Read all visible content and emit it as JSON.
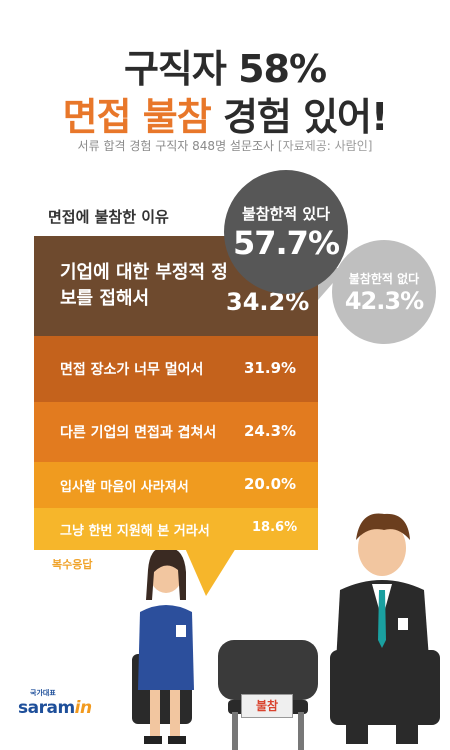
{
  "header": {
    "title_line1": "구직자 58%",
    "title_line2_highlight": "면접 불참",
    "title_line2_rest": " 경험 있어!",
    "subtitle": "서류 합격 경험 구직자 848명 설문조사",
    "source": "[자료제공: 사람인]"
  },
  "stats": {
    "yes_label": "불참한적 있다",
    "yes_value": "57.7%",
    "no_label": "불참한적 없다",
    "no_value": "42.3%"
  },
  "chart_data": {
    "type": "bar",
    "title": "면접에 불참한 이유",
    "categories": [
      "기업에 대한 부정적 정보를 접해서",
      "면접 장소가 너무 멀어서",
      "다른 기업의 면접과 겹쳐서",
      "입사할 마음이 사라져서",
      "그냥 한번 지원해 본 거라서"
    ],
    "values": [
      34.2,
      31.9,
      24.3,
      20.0,
      18.6
    ],
    "value_labels": [
      "34.2%",
      "31.9%",
      "24.3%",
      "20.0%",
      "18.6%"
    ],
    "note": "복수응답",
    "colors": [
      "#6e4a2e",
      "#c4621c",
      "#e27b1f",
      "#f09b1f",
      "#f6b62b"
    ]
  },
  "figures": {
    "sign_text": "불참"
  },
  "logo": {
    "small_text": "국가대표",
    "brand": "saram",
    "brand_suffix": "in"
  }
}
